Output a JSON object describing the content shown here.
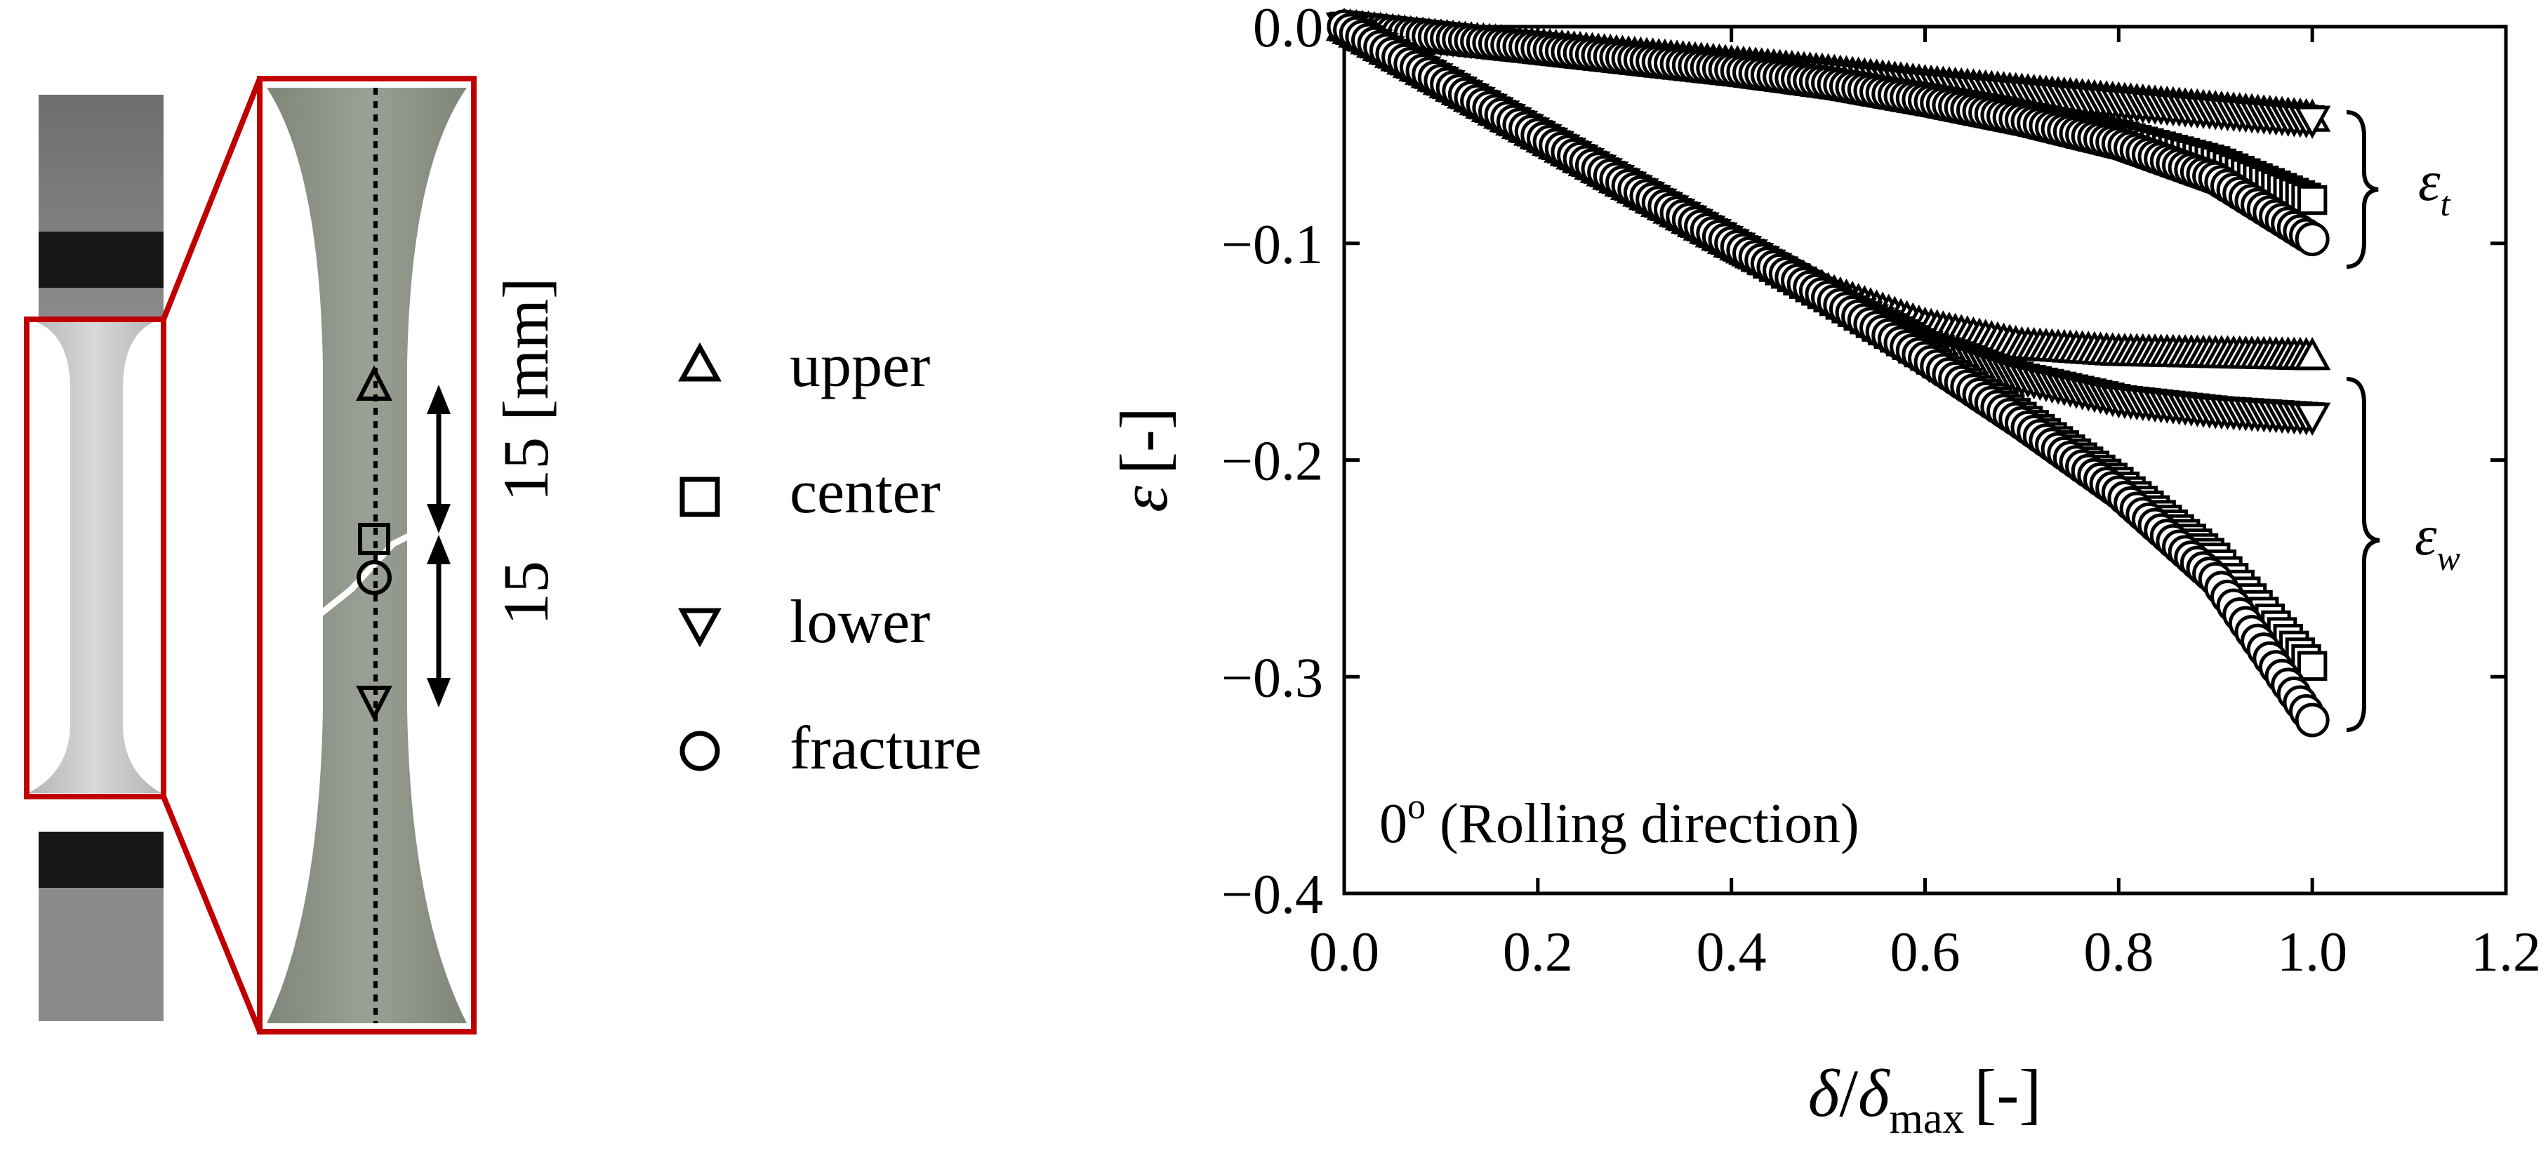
{
  "specimen": {
    "dimension_upper": "15 [mm]",
    "dimension_lower": "15",
    "frame_color": "#c00000"
  },
  "legend": {
    "items": [
      {
        "marker": "triangle-up",
        "label": "upper"
      },
      {
        "marker": "square",
        "label": "center"
      },
      {
        "marker": "triangle-down",
        "label": "lower"
      },
      {
        "marker": "circle",
        "label": "fracture"
      }
    ]
  },
  "chart_data": {
    "type": "scatter",
    "xlabel_parts": {
      "delta": "δ",
      "slash": "/",
      "delta2": "δ",
      "sub": "max",
      "unit": "[-]"
    },
    "ylabel_parts": {
      "symbol": "ε",
      "unit": "[-]"
    },
    "xlim": [
      0.0,
      1.2
    ],
    "ylim": [
      -0.4,
      0.0
    ],
    "xticks": [
      "0.0",
      "0.2",
      "0.4",
      "0.6",
      "0.8",
      "1.0",
      "1.2"
    ],
    "yticks": [
      "0.0",
      "−0.1",
      "−0.2",
      "−0.3",
      "−0.4"
    ],
    "annotation": {
      "angle": "0",
      "sup": "o",
      "text": " (Rolling direction)"
    },
    "brace_labels": {
      "thickness": {
        "symbol": "ε",
        "sub": "t"
      },
      "width": {
        "symbol": "ε",
        "sub": "w"
      }
    },
    "grid": false,
    "series": [
      {
        "group": "thickness",
        "marker": "triangle-up",
        "x": [
          0,
          0.1,
          0.2,
          0.3,
          0.4,
          0.5,
          0.6,
          0.7,
          0.8,
          0.9,
          1.0
        ],
        "y": [
          0,
          -0.005,
          -0.009,
          -0.013,
          -0.017,
          -0.021,
          -0.026,
          -0.03,
          -0.034,
          -0.038,
          -0.042
        ]
      },
      {
        "group": "thickness",
        "marker": "triangle-down",
        "x": [
          0,
          0.1,
          0.2,
          0.3,
          0.4,
          0.5,
          0.6,
          0.7,
          0.8,
          0.9,
          1.0
        ],
        "y": [
          0,
          -0.005,
          -0.009,
          -0.014,
          -0.018,
          -0.022,
          -0.027,
          -0.031,
          -0.035,
          -0.039,
          -0.043
        ]
      },
      {
        "group": "thickness",
        "marker": "square",
        "x": [
          0,
          0.1,
          0.2,
          0.3,
          0.4,
          0.5,
          0.6,
          0.7,
          0.8,
          0.9,
          1.0
        ],
        "y": [
          0,
          -0.005,
          -0.01,
          -0.015,
          -0.02,
          -0.026,
          -0.033,
          -0.041,
          -0.05,
          -0.062,
          -0.08
        ]
      },
      {
        "group": "thickness",
        "marker": "circle",
        "x": [
          0,
          0.1,
          0.2,
          0.3,
          0.4,
          0.5,
          0.6,
          0.7,
          0.8,
          0.9,
          1.0
        ],
        "y": [
          0,
          -0.005,
          -0.01,
          -0.015,
          -0.02,
          -0.026,
          -0.034,
          -0.043,
          -0.054,
          -0.07,
          -0.098
        ]
      },
      {
        "group": "width",
        "marker": "triangle-up",
        "x": [
          0,
          0.1,
          0.2,
          0.3,
          0.4,
          0.5,
          0.6,
          0.7,
          0.8,
          0.9,
          1.0
        ],
        "y": [
          0,
          -0.025,
          -0.05,
          -0.075,
          -0.1,
          -0.122,
          -0.138,
          -0.147,
          -0.15,
          -0.151,
          -0.152
        ]
      },
      {
        "group": "width",
        "marker": "triangle-down",
        "x": [
          0,
          0.1,
          0.2,
          0.3,
          0.4,
          0.5,
          0.6,
          0.7,
          0.8,
          0.9,
          1.0
        ],
        "y": [
          0,
          -0.025,
          -0.05,
          -0.075,
          -0.1,
          -0.125,
          -0.147,
          -0.162,
          -0.172,
          -0.177,
          -0.18
        ]
      },
      {
        "group": "width",
        "marker": "square",
        "x": [
          0,
          0.1,
          0.2,
          0.3,
          0.4,
          0.5,
          0.6,
          0.7,
          0.8,
          0.9,
          1.0
        ],
        "y": [
          0,
          -0.025,
          -0.05,
          -0.075,
          -0.1,
          -0.125,
          -0.152,
          -0.18,
          -0.21,
          -0.245,
          -0.295
        ]
      },
      {
        "group": "width",
        "marker": "circle",
        "x": [
          0,
          0.1,
          0.2,
          0.3,
          0.4,
          0.5,
          0.6,
          0.7,
          0.8,
          0.9,
          1.0
        ],
        "y": [
          0,
          -0.025,
          -0.05,
          -0.075,
          -0.1,
          -0.125,
          -0.153,
          -0.183,
          -0.215,
          -0.255,
          -0.32
        ]
      }
    ]
  }
}
